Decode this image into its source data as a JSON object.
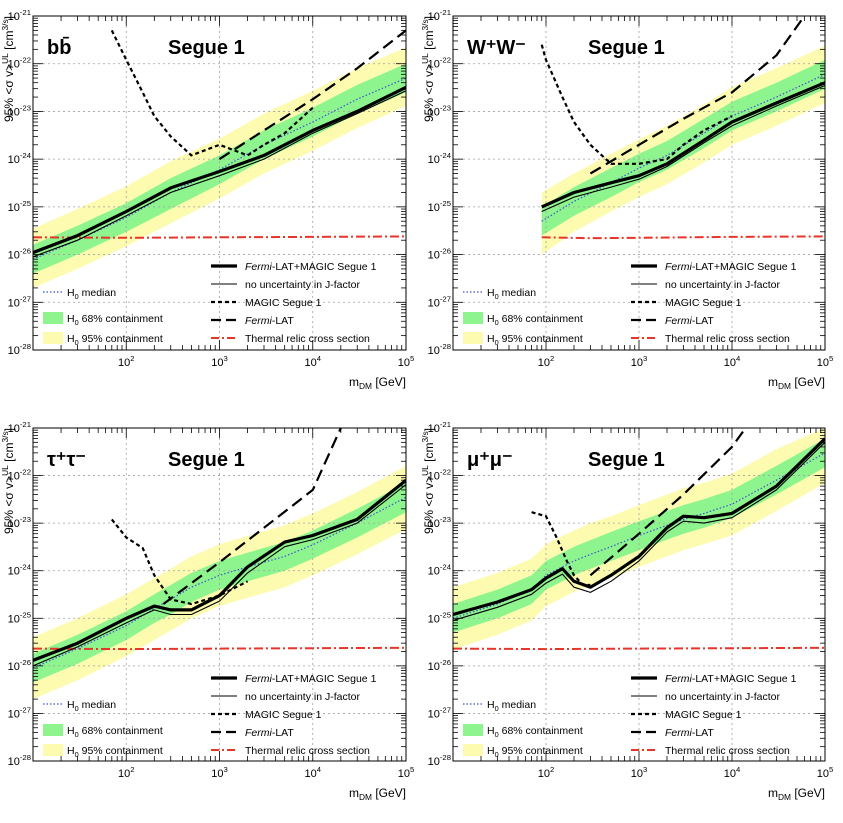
{
  "figure": {
    "axis_label_x": "m_DM [GeV]",
    "axis_label_y": "95% <σ v>^UL [cm^3/s]",
    "tick_labels_x": [
      "10^2",
      "10^3",
      "10^4",
      "10^5"
    ],
    "tick_labels_y": [
      "10^-28",
      "10^-27",
      "10^-26",
      "10^-25",
      "10^-24",
      "10^-23",
      "10^-22",
      "10^-21"
    ]
  },
  "colors": {
    "band95": "#fdfbb0",
    "band68": "#8ef58e",
    "median": "#3d52d1",
    "thermal": "#e8352a",
    "line": "#000000",
    "grid": "#a0a0a0"
  },
  "chart_data": [
    {
      "type": "line",
      "channel": "bb̄",
      "target": "Segue 1",
      "xlabel": "m_DM [GeV]",
      "ylabel": "95% <σ v>^UL [cm^3/s]",
      "xscale": "log",
      "yscale": "log",
      "xlim": [
        10,
        100000
      ],
      "ylim": [
        1e-28,
        1e-21
      ],
      "legend": [
        {
          "key": "combined",
          "label": "Fermi-LAT+MAGIC Segue 1",
          "italic_prefix": "Fermi"
        },
        {
          "key": "nounc",
          "label": "no uncertainty in J-factor"
        },
        {
          "key": "median",
          "label": "H_0 median"
        },
        {
          "key": "magic",
          "label": "MAGIC Segue 1"
        },
        {
          "key": "c68",
          "label": "H_0 68% containment"
        },
        {
          "key": "fermi",
          "label": "Fermi-LAT",
          "italic_prefix": "Fermi"
        },
        {
          "key": "c95",
          "label": "H_0 95% containment"
        },
        {
          "key": "thermal",
          "label": "Thermal relic cross section"
        }
      ],
      "x": [
        10,
        30,
        100,
        300,
        1000,
        3000,
        10000,
        30000,
        100000
      ],
      "series": [
        {
          "name": "Fermi-LAT+MAGIC Segue 1",
          "values": [
            1.1e-26,
            2.5e-26,
            8e-26,
            2.5e-25,
            5.5e-25,
            1.2e-24,
            4e-24,
            1e-23,
            3.2e-23
          ]
        },
        {
          "name": "no uncertainty in J-factor",
          "values": [
            9e-27,
            2e-26,
            6.5e-26,
            2e-25,
            4.5e-25,
            1e-24,
            3.5e-24,
            9e-24,
            2.7e-23
          ]
        },
        {
          "name": "H_0 median",
          "values": [
            8e-27,
            2e-26,
            6e-26,
            2e-25,
            6e-25,
            2e-24,
            6e-24,
            1.8e-23,
            5e-23
          ]
        },
        {
          "name": "H_0 68% lower",
          "values": [
            4e-27,
            1e-26,
            3e-26,
            9e-26,
            3e-25,
            1e-24,
            3e-24,
            9e-24,
            2.5e-23
          ]
        },
        {
          "name": "H_0 68% upper",
          "values": [
            1.6e-26,
            4e-26,
            1.2e-25,
            4e-25,
            1.2e-24,
            4e-24,
            1.2e-23,
            3.6e-23,
            1e-22
          ]
        },
        {
          "name": "H_0 95% lower",
          "values": [
            2e-27,
            5e-27,
            1.5e-26,
            4.5e-26,
            1.5e-25,
            5e-25,
            1.5e-24,
            4.5e-24,
            1.3e-23
          ]
        },
        {
          "name": "H_0 95% upper",
          "values": [
            3.5e-26,
            9e-26,
            2.7e-25,
            9e-25,
            2.7e-24,
            9e-24,
            2.7e-23,
            8e-23,
            2.2e-22
          ]
        },
        {
          "name": "MAGIC Segue 1",
          "x": [
            70,
            100,
            150,
            200,
            300,
            500,
            1000,
            2000,
            3000,
            5000,
            10000
          ],
          "values": [
            5e-22,
            1.2e-22,
            2.5e-23,
            8e-24,
            3e-24,
            1.2e-24,
            2e-24,
            1.2e-24,
            2e-24,
            3.5e-24,
            1.2e-23
          ]
        },
        {
          "name": "Fermi-LAT",
          "x": [
            1000,
            3000,
            10000,
            30000,
            100000
          ],
          "values": [
            1e-24,
            4e-24,
            1.8e-23,
            8e-23,
            5e-22
          ]
        },
        {
          "name": "Thermal relic cross section",
          "x": [
            10,
            100,
            1000,
            10000,
            100000
          ],
          "values": [
            2.3e-26,
            2.25e-26,
            2.3e-26,
            2.35e-26,
            2.4e-26
          ]
        }
      ]
    },
    {
      "type": "line",
      "channel": "W⁺W⁻",
      "target": "Segue 1",
      "xlabel": "m_DM [GeV]",
      "ylabel": "95% <σ v>^UL [cm^3/s]",
      "xscale": "log",
      "yscale": "log",
      "xlim": [
        10,
        100000
      ],
      "ylim": [
        1e-28,
        1e-21
      ],
      "legend": [
        {
          "key": "combined",
          "label": "Fermi-LAT+MAGIC Segue 1",
          "italic_prefix": "Fermi"
        },
        {
          "key": "nounc",
          "label": "no uncertainty in J-factor"
        },
        {
          "key": "median",
          "label": "H_0 median"
        },
        {
          "key": "magic",
          "label": "MAGIC Segue 1"
        },
        {
          "key": "c68",
          "label": "H_0 68% containment"
        },
        {
          "key": "fermi",
          "label": "Fermi-LAT",
          "italic_prefix": "Fermi"
        },
        {
          "key": "c95",
          "label": "H_0 95% containment"
        },
        {
          "key": "thermal",
          "label": "Thermal relic cross section"
        }
      ],
      "x": [
        90,
        200,
        500,
        1000,
        2000,
        5000,
        10000,
        30000,
        100000
      ],
      "series": [
        {
          "name": "Fermi-LAT+MAGIC Segue 1",
          "values": [
            1e-25,
            2e-25,
            3.2e-25,
            4.5e-25,
            8e-25,
            2.5e-24,
            6e-24,
            1.5e-23,
            4e-23
          ]
        },
        {
          "name": "no uncertainty in J-factor",
          "values": [
            8e-26,
            1.6e-25,
            2.6e-25,
            3.8e-25,
            7e-25,
            2.2e-24,
            5e-24,
            1.3e-23,
            3.5e-23
          ]
        },
        {
          "name": "H_0 median",
          "values": [
            5e-26,
            1.3e-25,
            3.2e-25,
            6.5e-25,
            1.2e-24,
            3.5e-24,
            8e-24,
            2e-23,
            6e-23
          ]
        },
        {
          "name": "H_0 68% lower",
          "values": [
            2.5e-26,
            6.5e-26,
            1.6e-25,
            3.3e-25,
            6e-25,
            1.7e-24,
            4e-24,
            1e-23,
            3e-23
          ]
        },
        {
          "name": "H_0 68% upper",
          "values": [
            1e-25,
            2.6e-25,
            6.5e-25,
            1.3e-24,
            2.4e-24,
            7e-24,
            1.6e-23,
            4e-23,
            1.2e-22
          ]
        },
        {
          "name": "H_0 95% lower",
          "values": [
            1e-26,
            3e-26,
            8e-26,
            1.6e-25,
            3e-25,
            8.5e-25,
            2e-24,
            5e-24,
            1.5e-23
          ]
        },
        {
          "name": "H_0 95% upper",
          "values": [
            2e-25,
            5e-25,
            1.3e-24,
            2.6e-24,
            5e-24,
            1.4e-23,
            3.2e-23,
            8e-23,
            2.4e-22
          ]
        },
        {
          "name": "MAGIC Segue 1",
          "x": [
            90,
            100,
            150,
            200,
            300,
            500,
            1000,
            2000,
            3000,
            5000,
            10000
          ],
          "values": [
            2.5e-22,
            1.2e-22,
            2e-23,
            6e-24,
            2e-24,
            8e-25,
            8e-25,
            1e-24,
            2e-24,
            4e-24,
            8e-24
          ]
        },
        {
          "name": "Fermi-LAT",
          "x": [
            300,
            1000,
            3000,
            10000,
            30000,
            60000
          ],
          "values": [
            5e-25,
            2e-24,
            7e-24,
            2.5e-23,
            1.5e-22,
            1e-21
          ]
        },
        {
          "name": "Thermal relic cross section",
          "x": [
            90,
            300,
            1000,
            10000,
            100000
          ],
          "values": [
            2.3e-26,
            2.2e-26,
            2.25e-26,
            2.35e-26,
            2.4e-26
          ]
        }
      ]
    },
    {
      "type": "line",
      "channel": "τ⁺τ⁻",
      "target": "Segue 1",
      "xlabel": "m_DM [GeV]",
      "ylabel": "95% <σ v>^UL [cm^3/s]",
      "xscale": "log",
      "yscale": "log",
      "xlim": [
        10,
        100000
      ],
      "ylim": [
        1e-28,
        1e-21
      ],
      "legend": [
        {
          "key": "combined",
          "label": "Fermi-LAT+MAGIC Segue 1",
          "italic_prefix": "Fermi"
        },
        {
          "key": "nounc",
          "label": "no uncertainty in J-factor"
        },
        {
          "key": "median",
          "label": "H_0 median"
        },
        {
          "key": "magic",
          "label": "MAGIC Segue 1"
        },
        {
          "key": "c68",
          "label": "H_0 68% containment"
        },
        {
          "key": "fermi",
          "label": "Fermi-LAT",
          "italic_prefix": "Fermi"
        },
        {
          "key": "c95",
          "label": "H_0 95% containment"
        },
        {
          "key": "thermal",
          "label": "Thermal relic cross section"
        }
      ],
      "x": [
        10,
        30,
        100,
        200,
        300,
        500,
        1000,
        2000,
        5000,
        10000,
        30000,
        100000
      ],
      "series": [
        {
          "name": "Fermi-LAT+MAGIC Segue 1",
          "values": [
            1.3e-26,
            3e-26,
            1e-25,
            1.8e-25,
            1.5e-25,
            1.5e-25,
            3e-25,
            1.2e-24,
            4e-24,
            5.5e-24,
            1.2e-23,
            8e-23
          ]
        },
        {
          "name": "no uncertainty in J-factor",
          "values": [
            1e-26,
            2.5e-26,
            8e-26,
            1.5e-25,
            1.2e-25,
            1.2e-25,
            2.3e-25,
            9e-25,
            3.2e-24,
            4.5e-24,
            1e-23,
            6.5e-23
          ]
        },
        {
          "name": "H_0 median",
          "values": [
            9e-27,
            2.3e-26,
            7e-26,
            1.6e-25,
            2.5e-25,
            4.5e-25,
            8e-25,
            1.2e-24,
            2e-24,
            3.5e-24,
            1e-23,
            3.5e-23
          ]
        },
        {
          "name": "H_0 68% lower",
          "values": [
            4.5e-27,
            1.1e-26,
            3.5e-26,
            8e-26,
            1.2e-25,
            2.2e-25,
            4e-25,
            6e-25,
            1e-24,
            1.8e-24,
            5e-24,
            1.7e-23
          ]
        },
        {
          "name": "H_0 68% upper",
          "values": [
            1.8e-26,
            4.5e-26,
            1.4e-25,
            3.2e-25,
            5e-25,
            9e-25,
            1.6e-24,
            2.4e-24,
            4e-24,
            7e-24,
            2e-23,
            7e-23
          ]
        },
        {
          "name": "H_0 95% lower",
          "values": [
            2e-27,
            5e-27,
            1.6e-26,
            3.5e-26,
            5.5e-26,
            1e-25,
            1.8e-25,
            2.7e-25,
            4.5e-25,
            8e-25,
            2.2e-24,
            7.5e-24
          ]
        },
        {
          "name": "H_0 95% upper",
          "values": [
            4e-26,
            1e-25,
            3.2e-25,
            7e-25,
            1.1e-24,
            2e-24,
            3.6e-24,
            5.4e-24,
            9e-24,
            1.6e-23,
            4.5e-23,
            1.6e-22
          ]
        },
        {
          "name": "MAGIC Segue 1",
          "x": [
            70,
            100,
            150,
            200,
            300,
            500,
            1000,
            2000
          ],
          "values": [
            1.2e-23,
            5e-24,
            3e-24,
            8e-25,
            2.5e-25,
            2e-25,
            3e-25,
            6e-25
          ]
        },
        {
          "name": "Fermi-LAT",
          "x": [
            250,
            1000,
            3000,
            10000,
            20000
          ],
          "values": [
            2e-25,
            1.5e-24,
            8e-24,
            5e-23,
            1e-21
          ]
        },
        {
          "name": "Thermal relic cross section",
          "x": [
            10,
            100,
            1000,
            10000,
            100000
          ],
          "values": [
            2.3e-26,
            2.25e-26,
            2.3e-26,
            2.35e-26,
            2.4e-26
          ]
        }
      ]
    },
    {
      "type": "line",
      "channel": "μ⁺μ⁻",
      "target": "Segue 1",
      "xlabel": "m_DM [GeV]",
      "ylabel": "95% <σ v>^UL [cm^3/s]",
      "xscale": "log",
      "yscale": "log",
      "xlim": [
        10,
        100000
      ],
      "ylim": [
        1e-28,
        1e-21
      ],
      "legend": [
        {
          "key": "combined",
          "label": "Fermi-LAT+MAGIC Segue 1",
          "italic_prefix": "Fermi"
        },
        {
          "key": "nounc",
          "label": "no uncertainty in J-factor"
        },
        {
          "key": "median",
          "label": "H_0 median"
        },
        {
          "key": "magic",
          "label": "MAGIC Segue 1"
        },
        {
          "key": "c68",
          "label": "H_0 68% containment"
        },
        {
          "key": "fermi",
          "label": "Fermi-LAT",
          "italic_prefix": "Fermi"
        },
        {
          "key": "c95",
          "label": "H_0 95% containment"
        },
        {
          "key": "thermal",
          "label": "Thermal relic cross section"
        }
      ],
      "x": [
        10,
        30,
        70,
        100,
        150,
        200,
        300,
        500,
        1000,
        2000,
        3000,
        5000,
        10000,
        30000,
        100000
      ],
      "series": [
        {
          "name": "Fermi-LAT+MAGIC Segue 1",
          "values": [
            1.2e-25,
            2.2e-25,
            4e-25,
            7e-25,
            1.1e-24,
            6e-25,
            4.5e-25,
            8e-25,
            2e-24,
            8e-24,
            1.4e-23,
            1.3e-23,
            1.6e-23,
            6e-23,
            6e-22
          ]
        },
        {
          "name": "no uncertainty in J-factor",
          "values": [
            9e-26,
            1.7e-25,
            3.2e-25,
            5.5e-25,
            8.5e-25,
            4.5e-25,
            3.5e-25,
            6e-25,
            1.6e-24,
            6.5e-24,
            1.1e-23,
            1e-23,
            1.3e-23,
            5e-23,
            5e-22
          ]
        },
        {
          "name": "H_0 median",
          "values": [
            1e-25,
            2e-25,
            4e-25,
            8e-25,
            1.2e-24,
            1.6e-24,
            2.2e-24,
            3.2e-24,
            5.5e-24,
            9e-24,
            1.2e-23,
            1.6e-23,
            2.5e-23,
            8e-23,
            3e-22
          ]
        },
        {
          "name": "H_0 68% lower",
          "values": [
            5e-26,
            1e-25,
            2e-25,
            4e-25,
            6e-25,
            8e-25,
            1.1e-24,
            1.6e-24,
            2.7e-24,
            4.5e-24,
            6e-24,
            8e-24,
            1.3e-23,
            4e-23,
            1.5e-22
          ]
        },
        {
          "name": "H_0 68% upper",
          "values": [
            2e-25,
            4e-25,
            8e-25,
            1.6e-24,
            2.4e-24,
            3.2e-24,
            4.4e-24,
            6.5e-24,
            1.1e-23,
            1.8e-23,
            2.4e-23,
            3.2e-23,
            5e-23,
            1.6e-22,
            6e-22
          ]
        },
        {
          "name": "H_0 95% lower",
          "values": [
            2.2e-26,
            4.5e-26,
            9e-26,
            1.8e-25,
            2.7e-25,
            3.6e-25,
            5e-25,
            7e-25,
            1.2e-24,
            2e-24,
            2.7e-24,
            3.6e-24,
            5.5e-24,
            1.8e-23,
            7e-23
          ]
        },
        {
          "name": "H_0 95% upper",
          "values": [
            4.5e-25,
            9e-25,
            1.8e-24,
            3.6e-24,
            5.4e-24,
            7e-24,
            1e-23,
            1.4e-23,
            2.4e-23,
            4e-23,
            5.4e-23,
            7e-23,
            1.1e-22,
            3.6e-22,
            1e-21
          ]
        },
        {
          "name": "MAGIC Segue 1",
          "x": [
            70,
            100,
            130,
            170,
            200,
            250,
            300
          ],
          "values": [
            1.7e-23,
            1.4e-23,
            5e-24,
            1.5e-24,
            8e-25,
            5e-25,
            5e-25
          ]
        },
        {
          "name": "Fermi-LAT",
          "x": [
            300,
            1000,
            3000,
            10000,
            14000
          ],
          "values": [
            8e-25,
            6e-24,
            4e-23,
            4e-22,
            1e-21
          ]
        },
        {
          "name": "Thermal relic cross section",
          "x": [
            10,
            100,
            1000,
            10000,
            100000
          ],
          "values": [
            2.3e-26,
            2.25e-26,
            2.3e-26,
            2.35e-26,
            2.4e-26
          ]
        }
      ]
    }
  ]
}
